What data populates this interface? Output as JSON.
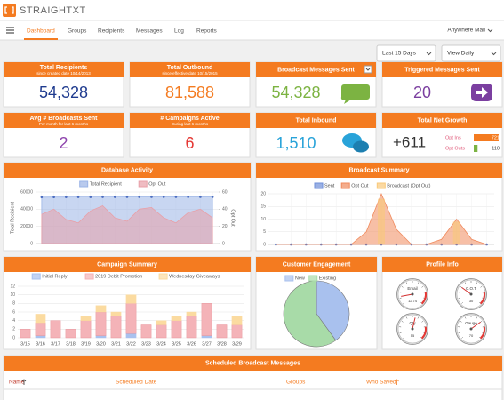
{
  "header": {
    "brand": "STRAIGHTXT"
  },
  "nav": {
    "tabs": [
      "Dashboard",
      "Groups",
      "Recipients",
      "Messages",
      "Log",
      "Reports"
    ],
    "account": "Anywhere Mall"
  },
  "filters": [
    "Last 15 Days",
    "View Daily"
  ],
  "stats": [
    {
      "title": "Total Recipients",
      "subtitle": "since created date 10/14/2013",
      "value": "54,328",
      "color": "#1f3b8f"
    },
    {
      "title": "Total Outbound",
      "subtitle": "since effective date 10/15/2015",
      "value": "81,588",
      "color": "#f47b20"
    },
    {
      "title": "Broadcast Messages Sent",
      "value": "54,328",
      "color": "#7cb342"
    },
    {
      "title": "Triggered Messages Sent",
      "value": "20",
      "color": "#7b3fa0"
    },
    {
      "title": "Avg # Broadcasts Sent",
      "subtitle": "Per month for last 6 months",
      "value": "2",
      "color": "#8e44ad"
    },
    {
      "title": "# Campaigns Active",
      "subtitle": "During last 6 months",
      "value": "6",
      "color": "#e53935"
    },
    {
      "title": "Total Inbound",
      "value": "1,510",
      "color": "#29a3d9"
    }
  ],
  "net_growth": {
    "title": "Total Net Growth",
    "value": "+611",
    "opt_ins": {
      "label": "Opt Ins",
      "value": 721,
      "color": "#f47b20"
    },
    "opt_outs": {
      "label": "Opt Outs",
      "value": 110,
      "color": "#7cb342"
    }
  },
  "chart_data": [
    {
      "type": "line",
      "title": "Database Activity",
      "ylabel": "Total Recipient",
      "y2label": "Opt Out",
      "categories": [
        null,
        null,
        null,
        null,
        null,
        null,
        null,
        null,
        null,
        null,
        null,
        null,
        null,
        null,
        null
      ],
      "ylim": [
        0,
        60000
      ],
      "yticks": [
        0,
        20000,
        40000,
        60000
      ],
      "y2lim": [
        0,
        60
      ],
      "y2ticks": [
        0,
        20,
        40,
        60
      ],
      "series": [
        {
          "name": "Total Recipient",
          "color": "#9bb4e6",
          "values": [
            54000,
            54100,
            54150,
            54200,
            54200,
            54250,
            54250,
            54300,
            54300,
            54300,
            54300,
            54320,
            54320,
            54328,
            54328
          ]
        },
        {
          "name": "Opt Out",
          "color": "#e8a0a8",
          "axis": "y2",
          "values": [
            34,
            40,
            28,
            24,
            38,
            44,
            30,
            26,
            40,
            42,
            30,
            24,
            36,
            40,
            30
          ]
        }
      ]
    },
    {
      "type": "line",
      "title": "Broadcast Summary",
      "categories": [
        null,
        null,
        null,
        null,
        null,
        null,
        null,
        null,
        null,
        null,
        null,
        null,
        null,
        null,
        null
      ],
      "ylim": [
        0,
        20
      ],
      "yticks": [
        0,
        5,
        10,
        15,
        20
      ],
      "series": [
        {
          "name": "Sent",
          "color": "#6f8fd8",
          "values": [
            0,
            0,
            0,
            0,
            0,
            0,
            0,
            0,
            0,
            0,
            0,
            0,
            0,
            0,
            0
          ]
        },
        {
          "name": "Opt Out",
          "color": "#f08a5d",
          "values": [
            0,
            0,
            0,
            0,
            0,
            0,
            5,
            20,
            6,
            0,
            0,
            2,
            10,
            2,
            0
          ]
        },
        {
          "name": "Broadcast (Opt Out)",
          "color": "#f9c97a",
          "values": [
            0,
            0,
            0,
            0,
            0,
            0,
            0,
            18,
            0,
            0,
            0,
            0,
            9,
            0,
            0
          ]
        }
      ]
    },
    {
      "type": "stacked-bar",
      "title": "Campaign Summary",
      "categories": [
        "3/15",
        "3/16",
        "3/17",
        "3/18",
        "3/19",
        "3/20",
        "3/21",
        "3/22",
        "3/23",
        "3/24",
        "3/25",
        "3/26",
        "3/27",
        "3/28",
        "3/29"
      ],
      "ylim": [
        0,
        12
      ],
      "yticks": [
        0,
        2,
        4,
        6,
        8,
        10,
        12
      ],
      "series": [
        {
          "name": "Initial Reply",
          "color": "#a9c1ee",
          "values": [
            0,
            0.5,
            0,
            0,
            0,
            0.5,
            0,
            1,
            0,
            0,
            0,
            0,
            0.5,
            0,
            0
          ]
        },
        {
          "name": "2019 Debit Promotion",
          "color": "#f4b3b8",
          "values": [
            2,
            3,
            4,
            2,
            4,
            5.5,
            5,
            7,
            3,
            3,
            4,
            5,
            7.5,
            3,
            3
          ]
        },
        {
          "name": "Wednesday Giveaways",
          "color": "#fbdba0",
          "values": [
            0,
            2,
            0,
            0,
            1,
            1.5,
            1,
            2,
            0,
            1,
            1,
            1,
            0,
            0,
            2
          ]
        }
      ]
    },
    {
      "type": "pie",
      "title": "Customer Engagement",
      "categories": [
        "New",
        "Existing"
      ],
      "values": [
        40,
        60
      ],
      "colors": [
        "#a9c1ee",
        "#a8dba8"
      ]
    }
  ],
  "profile": {
    "title": "Profile Info",
    "range": [
      0,
      100
    ],
    "gauges": [
      {
        "label": "Email",
        "value": 12.74
      },
      {
        "label": "C.O.T",
        "value": 30
      },
      {
        "label": "Qty",
        "value": 55
      },
      {
        "label": "Gauge",
        "value": 70
      }
    ]
  },
  "table": {
    "title": "Scheduled Broadcast Messages",
    "columns": [
      "Name",
      "Scheduled Date",
      "Groups",
      "Who Saved"
    ]
  }
}
